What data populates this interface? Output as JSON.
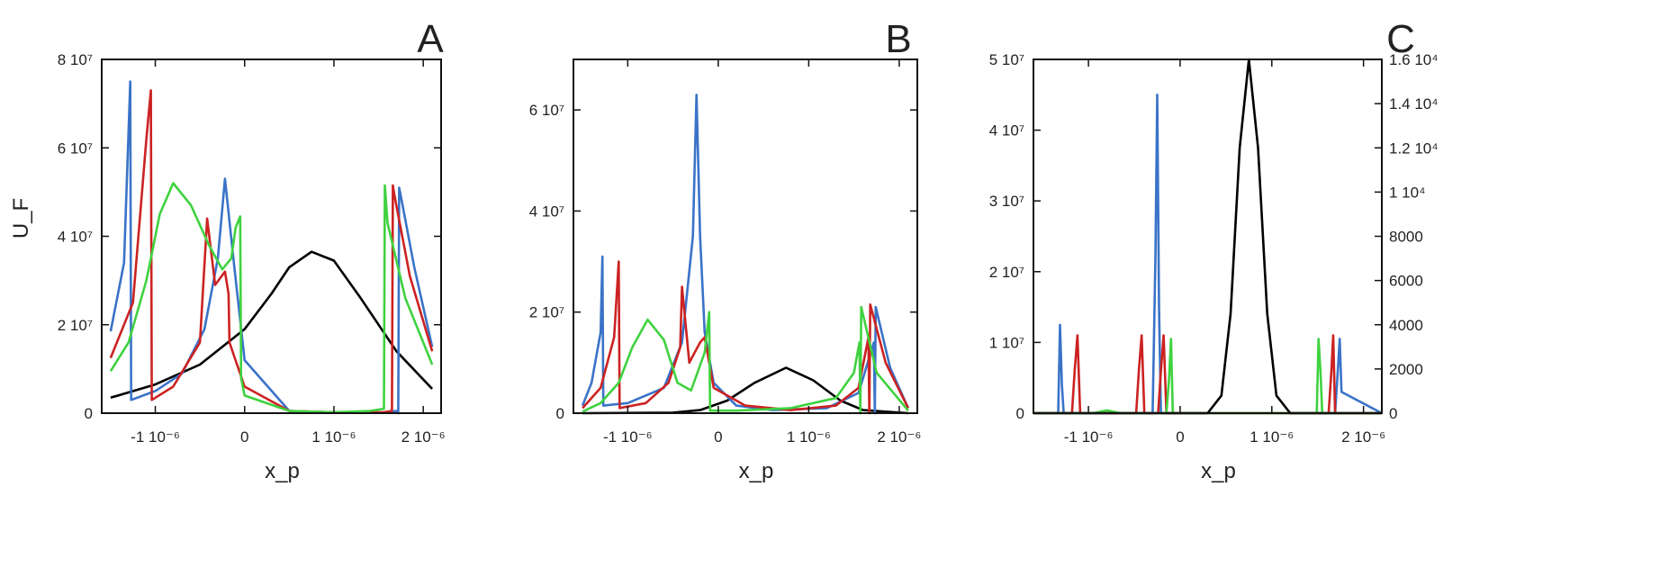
{
  "chart_data": [
    {
      "type": "line",
      "panel_label": "A",
      "xlabel": "x_p",
      "ylabel": "U_F",
      "xlim": [
        -1.6e-06,
        2.2e-06
      ],
      "ylim": [
        0,
        80000000.0
      ],
      "x_ticks": [
        -1e-06,
        0,
        1e-06,
        2e-06
      ],
      "x_tick_labels": [
        "-1 10⁻⁶",
        "0",
        "1 10⁻⁶",
        "2 10⁻⁶"
      ],
      "y_ticks": [
        0,
        20000000.0,
        40000000.0,
        60000000.0,
        80000000.0
      ],
      "y_tick_labels": [
        "0",
        "2 10⁷",
        "4 10⁷",
        "6 10⁷",
        "8 10⁷"
      ],
      "grid": false,
      "legend": "none",
      "series": [
        {
          "color": "#000000",
          "x": [
            -1.5e-06,
            -1e-06,
            -5e-07,
            0.0,
            3e-07,
            5e-07,
            7.5e-07,
            1e-06,
            1.3e-06,
            1.7e-06,
            2.1e-06
          ],
          "y": [
            3500000.0,
            6500000.0,
            11000000.0,
            19000000.0,
            27000000.0,
            33000000.0,
            36500000.0,
            34500000.0,
            26000000.0,
            14000000.0,
            5500000.0
          ]
        },
        {
          "color": "#3a73c8",
          "x": [
            -1.5e-06,
            -1.35e-06,
            -1.28e-06,
            -1.27e-06,
            -1e-06,
            -7e-07,
            -4.5e-07,
            -3e-07,
            -2.2e-07,
            -1.2e-07,
            0.0,
            5e-07,
            1e-06,
            1.55e-06,
            1.7e-06,
            1.72e-06,
            1.73e-06,
            1.76e-06,
            1.9e-06,
            2.1e-06
          ],
          "y": [
            18500000.0,
            34000000.0,
            75000000.0,
            3000000.0,
            5000000.0,
            9000000.0,
            19000000.0,
            35000000.0,
            53000000.0,
            34000000.0,
            12000000.0,
            500000.0,
            200000.0,
            200000.0,
            500000.0,
            0,
            51000000.0,
            48000000.0,
            33000000.0,
            15000000.0
          ]
        },
        {
          "color": "#cc2222",
          "x": [
            -1.5e-06,
            -1.25e-06,
            -1.1e-06,
            -1.05e-06,
            -1.04e-06,
            -8e-07,
            -5e-07,
            -4.2e-07,
            -3.3e-07,
            -2.2e-07,
            -1.8e-07,
            -1.7e-07,
            0.0,
            5e-07,
            1e-06,
            1.55e-06,
            1.65e-06,
            1.66e-06,
            1.68e-06,
            1.85e-06,
            2.1e-06
          ],
          "y": [
            12500000.0,
            25000000.0,
            62000000.0,
            73000000.0,
            3000000.0,
            6000000.0,
            16000000.0,
            44000000.0,
            29000000.0,
            32000000.0,
            27000000.0,
            16000000.0,
            6000000.0,
            500000.0,
            200000.0,
            200000.0,
            500000.0,
            51500000.0,
            49000000.0,
            31000000.0,
            14000000.0
          ]
        },
        {
          "color": "#3fd23f",
          "x": [
            -1.5e-06,
            -1.3e-06,
            -1.1e-06,
            -9.5e-07,
            -8e-07,
            -6e-07,
            -4e-07,
            -2.5e-07,
            -1.5e-07,
            -1e-07,
            -5e-08,
            -4e-08,
            0.0,
            5e-07,
            1e-06,
            1.4e-06,
            1.56e-06,
            1.57e-06,
            1.6e-06,
            1.8e-06,
            2.1e-06
          ],
          "y": [
            9500000.0,
            16000000.0,
            30000000.0,
            45000000.0,
            52000000.0,
            47000000.0,
            38000000.0,
            32500000.0,
            35000000.0,
            42000000.0,
            44500000.0,
            8000000.0,
            4000000.0,
            500000.0,
            200000.0,
            500000.0,
            1000000.0,
            51500000.0,
            43000000.0,
            26000000.0,
            11000000.0
          ]
        }
      ]
    },
    {
      "type": "line",
      "panel_label": "B",
      "xlabel": "x_p",
      "ylabel": "",
      "xlim": [
        -1.6e-06,
        2.2e-06
      ],
      "ylim": [
        0,
        70000000.0
      ],
      "x_ticks": [
        -1e-06,
        0,
        1e-06,
        2e-06
      ],
      "x_tick_labels": [
        "-1 10⁻⁶",
        "0",
        "1 10⁻⁶",
        "2 10⁻⁶"
      ],
      "y_ticks": [
        0,
        20000000.0,
        40000000.0,
        60000000.0
      ],
      "y_tick_labels": [
        "0",
        "2 10⁷",
        "4 10⁷",
        "6 10⁷"
      ],
      "grid": false,
      "legend": "none",
      "series": [
        {
          "color": "#000000",
          "x": [
            -1.5e-06,
            -5e-07,
            -2e-07,
            1e-07,
            4e-07,
            7.5e-07,
            1.05e-06,
            1.35e-06,
            1.6e-06,
            2.1e-06
          ],
          "y": [
            0,
            100000.0,
            600000.0,
            2500000.0,
            6000000.0,
            9000000.0,
            6500000.0,
            2500000.0,
            600000.0,
            0
          ]
        },
        {
          "color": "#3a73c8",
          "x": [
            -1.5e-06,
            -1.4e-06,
            -1.3e-06,
            -1.28e-06,
            -1.27e-06,
            -1e-06,
            -6e-07,
            -4e-07,
            -2.8e-07,
            -2.4e-07,
            -2e-07,
            -1.5e-07,
            -5e-08,
            2e-07,
            6e-07,
            1.2e-06,
            1.55e-06,
            1.72e-06,
            1.73e-06,
            1.74e-06,
            1.9e-06,
            2.1e-06
          ],
          "y": [
            1500000.0,
            6000000.0,
            16000000.0,
            31000000.0,
            1500000.0,
            2000000.0,
            5000000.0,
            14000000.0,
            35000000.0,
            63000000.0,
            35000000.0,
            16000000.0,
            6000000.0,
            1500000.0,
            600000.0,
            1000000.0,
            4000000.0,
            14000000.0,
            0,
            21000000.0,
            9000000.0,
            1000000.0
          ]
        },
        {
          "color": "#cc2222",
          "x": [
            -1.5e-06,
            -1.3e-06,
            -1.15e-06,
            -1.1e-06,
            -1.09e-06,
            -8e-07,
            -5.5e-07,
            -4.2e-07,
            -4e-07,
            -3.2e-07,
            -2e-07,
            -1.5e-07,
            -5e-08,
            3e-07,
            8e-07,
            1.3e-06,
            1.55e-06,
            1.66e-06,
            1.67e-06,
            1.68e-06,
            1.85e-06,
            2.1e-06
          ],
          "y": [
            1000000.0,
            5000000.0,
            15000000.0,
            30000000.0,
            1000000.0,
            2000000.0,
            6000000.0,
            13000000.0,
            25000000.0,
            10000000.0,
            14000000.0,
            15000000.0,
            5000000.0,
            1500000.0,
            600000.0,
            1500000.0,
            5000000.0,
            15000000.0,
            0,
            21500000.0,
            10000000.0,
            1000000.0
          ]
        },
        {
          "color": "#3fd23f",
          "x": [
            -1.5e-06,
            -1.3e-06,
            -1.1e-06,
            -9.5e-07,
            -7.8e-07,
            -6e-07,
            -4.5e-07,
            -3e-07,
            -1.5e-07,
            -1e-07,
            -9e-08,
            2e-07,
            8e-07,
            1.3e-06,
            1.5e-06,
            1.56e-06,
            1.57e-06,
            1.58e-06,
            1.75e-06,
            2.1e-06
          ],
          "y": [
            300000.0,
            2000000.0,
            6000000.0,
            13000000.0,
            18500000.0,
            14500000.0,
            6000000.0,
            4500000.0,
            12000000.0,
            20000000.0,
            500000.0,
            500000.0,
            1000000.0,
            3000000.0,
            8000000.0,
            14000000.0,
            0,
            21000000.0,
            8000000.0,
            500000.0
          ]
        }
      ]
    },
    {
      "type": "line",
      "panel_label": "C",
      "xlabel": "x_p",
      "ylabel": "",
      "xlim": [
        -1.6e-06,
        2.2e-06
      ],
      "ylim": [
        0,
        50000000.0
      ],
      "y2lim": [
        0,
        16000
      ],
      "x_ticks": [
        -1e-06,
        0,
        1e-06,
        2e-06
      ],
      "x_tick_labels": [
        "-1 10⁻⁶",
        "0",
        "1 10⁻⁶",
        "2 10⁻⁶"
      ],
      "y_ticks": [
        0,
        10000000.0,
        20000000.0,
        30000000.0,
        40000000.0,
        50000000.0
      ],
      "y_tick_labels": [
        "0",
        "1 10⁷",
        "2 10⁷",
        "3 10⁷",
        "4 10⁷",
        "5 10⁷"
      ],
      "y2_ticks": [
        0,
        2000,
        4000,
        6000,
        8000,
        10000,
        12000,
        14000,
        16000
      ],
      "y2_tick_labels": [
        "0",
        "2000",
        "4000",
        "6000",
        "8000",
        "1 10⁴",
        "1.2 10⁴",
        "1.4 10⁴",
        "1.6 10⁴"
      ],
      "grid": false,
      "legend": "none",
      "series": [
        {
          "color": "#3a73c8",
          "axis": "left",
          "x": [
            -1.6e-06,
            -1.33e-06,
            -1.31e-06,
            -1.29e-06,
            -1.27e-06,
            -3e-07,
            -2.7e-07,
            -2.5e-07,
            -2.3e-07,
            -2.1e-07,
            1.69e-06,
            1.72e-06,
            1.74e-06,
            1.76e-06,
            2.2e-06
          ],
          "y": [
            0,
            0,
            12500000.0,
            4000000.0,
            0,
            0,
            22000000.0,
            45000000.0,
            15000000.0,
            0,
            0,
            6000000.0,
            10500000.0,
            3000000.0,
            0
          ]
        },
        {
          "color": "#cc2222",
          "axis": "left",
          "x": [
            -1.6e-06,
            -1.18e-06,
            -1.15e-06,
            -1.12e-06,
            -1.09e-06,
            -4.8e-07,
            -4.5e-07,
            -4.2e-07,
            -3.9e-07,
            -2.4e-07,
            -2.1e-07,
            -1.8e-07,
            -1.5e-07,
            1.62e-06,
            1.65e-06,
            1.67e-06,
            1.69e-06,
            2.2e-06
          ],
          "y": [
            0,
            0,
            6000000.0,
            11000000.0,
            0,
            0,
            6000000.0,
            11000000.0,
            0,
            0,
            6000000.0,
            11000000.0,
            0,
            0,
            6000000.0,
            11000000.0,
            0,
            0
          ]
        },
        {
          "color": "#3fd23f",
          "axis": "left",
          "x": [
            -1.6e-06,
            -9.5e-07,
            -8e-07,
            -6.5e-07,
            -1.5e-07,
            -1.2e-07,
            -1e-07,
            -8e-08,
            1.49e-06,
            1.51e-06,
            1.53e-06,
            1.55e-06,
            2.2e-06
          ],
          "y": [
            0,
            0,
            400000.0,
            0,
            0,
            5000000.0,
            10500000.0,
            0,
            0,
            10500000.0,
            6000000.0,
            0,
            0
          ]
        },
        {
          "color": "#000000",
          "axis": "right",
          "x": [
            -1.6e-06,
            3e-07,
            4.5e-07,
            5.5e-07,
            6.5e-07,
            7.5e-07,
            8.5e-07,
            9.5e-07,
            1.05e-06,
            1.2e-06,
            2.2e-06
          ],
          "y": [
            0,
            0,
            800,
            4500,
            12000,
            16000,
            12000,
            4500,
            800,
            0,
            0
          ]
        }
      ]
    }
  ]
}
